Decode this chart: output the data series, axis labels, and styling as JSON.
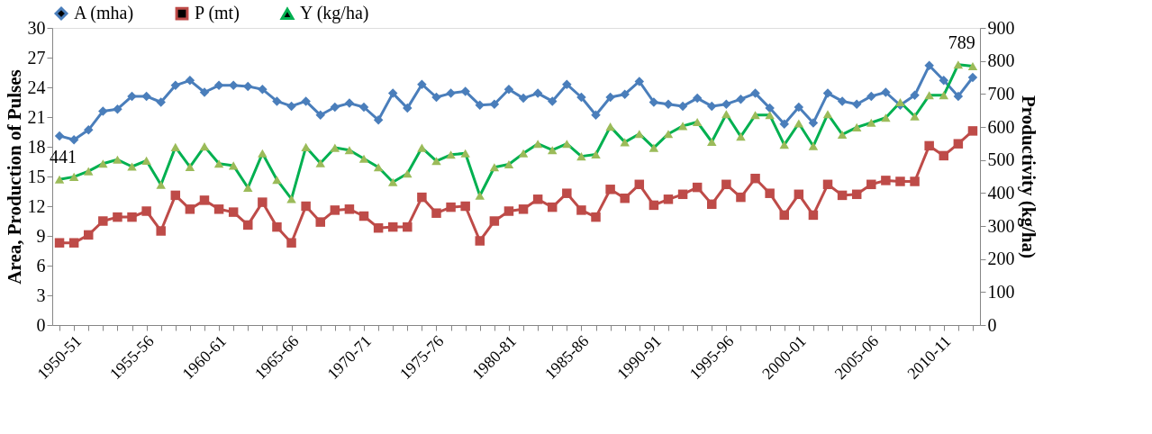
{
  "chart_data": {
    "type": "line",
    "categories": [
      "1950-51",
      null,
      null,
      null,
      null,
      "1955-56",
      null,
      null,
      null,
      null,
      "1960-61",
      null,
      null,
      null,
      null,
      "1965-66",
      null,
      null,
      null,
      null,
      "1970-71",
      null,
      null,
      null,
      null,
      "1975-76",
      null,
      null,
      null,
      null,
      "1980-81",
      null,
      null,
      null,
      null,
      "1985-86",
      null,
      null,
      null,
      null,
      "1990-91",
      null,
      null,
      null,
      null,
      "1995-96",
      null,
      null,
      null,
      null,
      "2000-01",
      null,
      null,
      null,
      null,
      "2005-06",
      null,
      null,
      null,
      null,
      "2010-11",
      null,
      null,
      null
    ],
    "series": [
      {
        "name": "A (mha)",
        "color": "#4a7ebb",
        "marker": "diamond",
        "values": [
          19.1,
          18.7,
          19.7,
          21.6,
          21.8,
          23.1,
          23.1,
          22.5,
          24.2,
          24.7,
          23.5,
          24.2,
          24.2,
          24.1,
          23.8,
          22.6,
          22.1,
          22.6,
          21.2,
          22.0,
          22.4,
          22.0,
          20.7,
          23.4,
          21.9,
          24.3,
          23.0,
          23.4,
          23.6,
          22.2,
          22.3,
          23.8,
          22.9,
          23.4,
          22.6,
          24.3,
          23.0,
          21.2,
          23.0,
          23.3,
          24.6,
          22.5,
          22.3,
          22.1,
          22.9,
          22.1,
          22.3,
          22.8,
          23.4,
          21.9,
          20.3,
          22.0,
          20.4,
          23.4,
          22.6,
          22.3,
          23.1,
          23.5,
          22.2,
          23.2,
          26.2,
          24.7,
          23.1,
          25.0
        ]
      },
      {
        "name": "P (mt)",
        "color": "#be4b48",
        "marker": "square",
        "values": [
          8.3,
          8.3,
          9.1,
          10.5,
          10.9,
          10.9,
          11.5,
          9.5,
          13.1,
          11.7,
          12.6,
          11.7,
          11.4,
          10.1,
          12.4,
          9.9,
          8.3,
          12.0,
          10.4,
          11.6,
          11.7,
          11.0,
          9.8,
          9.9,
          9.9,
          12.9,
          11.3,
          11.9,
          12.0,
          8.5,
          10.5,
          11.5,
          11.7,
          12.7,
          11.9,
          13.3,
          11.6,
          10.9,
          13.7,
          12.8,
          14.2,
          12.1,
          12.7,
          13.2,
          13.9,
          12.2,
          14.2,
          12.9,
          14.8,
          13.3,
          11.1,
          13.2,
          11.1,
          14.2,
          13.1,
          13.2,
          14.2,
          14.6,
          14.5,
          14.5,
          18.1,
          17.1,
          18.3,
          19.6
        ]
      },
      {
        "name": "Y (kg/ha)",
        "color": "#00b050",
        "marker": "triangle",
        "axis": "y2",
        "colors": [
          "#9bbb59",
          "#9bbb59",
          "#9bbb59",
          "#9bbb59",
          "#9bbb59",
          "#9bbb59",
          "#9bbb59",
          "#9bbb59",
          "#9bbb59",
          "#9bbb59",
          "#9bbb59",
          "#9bbb59",
          "#9bbb59",
          "#9bbb59",
          "#9bbb59",
          "#9bbb59",
          "#9bbb59",
          "#9bbb59",
          "#9bbb59",
          "#9bbb59",
          "#9bbb59",
          "#9bbb59",
          "#9bbb59",
          "#9bbb59",
          "#9bbb59",
          "#9bbb59",
          "#9bbb59",
          "#9bbb59",
          "#9bbb59",
          "#9bbb59",
          "#9bbb59",
          "#9bbb59",
          "#9bbb59",
          "#9bbb59",
          "#9bbb59",
          "#9bbb59",
          "#9bbb59",
          "#9bbb59",
          "#9bbb59",
          "#9bbb59",
          "#9bbb59",
          "#9bbb59",
          "#9bbb59",
          "#9bbb59",
          "#9bbb59",
          "#9bbb59",
          "#9bbb59",
          "#9bbb59",
          "#9bbb59",
          "#9bbb59",
          "#9bbb59",
          "#9bbb59",
          "#9bbb59",
          "#9bbb59",
          "#9bbb59",
          "#9bbb59",
          "#9bbb59",
          "#9bbb59",
          "#9bbb59",
          "#9bbb59",
          "#9bbb59",
          "#9bbb59",
          "#9bbb59",
          "#9bbb59"
        ],
        "values": [
          441,
          449,
          466,
          489,
          501,
          480,
          498,
          425,
          539,
          479,
          541,
          489,
          483,
          416,
          520,
          440,
          382,
          539,
          490,
          537,
          530,
          504,
          478,
          433,
          459,
          537,
          497,
          516,
          520,
          392,
          478,
          487,
          520,
          549,
          530,
          549,
          511,
          517,
          601,
          554,
          579,
          537,
          579,
          603,
          615,
          555,
          639,
          571,
          636,
          636,
          546,
          611,
          542,
          639,
          577,
          599,
          613,
          628,
          675,
          632,
          696,
          696,
          789,
          784
        ],
        "value_labels": [
          "441",
          null,
          null,
          null,
          null,
          null,
          null,
          null,
          null,
          null,
          null,
          null,
          null,
          null,
          null,
          null,
          null,
          null,
          null,
          null,
          null,
          null,
          null,
          null,
          null,
          null,
          null,
          null,
          null,
          null,
          null,
          null,
          null,
          null,
          null,
          null,
          null,
          null,
          null,
          null,
          null,
          null,
          null,
          null,
          null,
          null,
          null,
          null,
          null,
          null,
          null,
          null,
          null,
          null,
          null,
          null,
          null,
          null,
          null,
          null,
          null,
          null,
          "789",
          null
        ]
      }
    ],
    "ylabel": "Area, Production of Pulses",
    "y2label": "Productivity (kg/ha)",
    "ylim": [
      0,
      30
    ],
    "yticks": [
      0,
      3,
      6,
      9,
      12,
      15,
      18,
      21,
      24,
      27,
      30
    ],
    "y2lim": [
      0,
      900
    ],
    "y2ticks": [
      0,
      100,
      200,
      300,
      400,
      500,
      600,
      700,
      800,
      900
    ],
    "grid": false,
    "legend": "top"
  }
}
